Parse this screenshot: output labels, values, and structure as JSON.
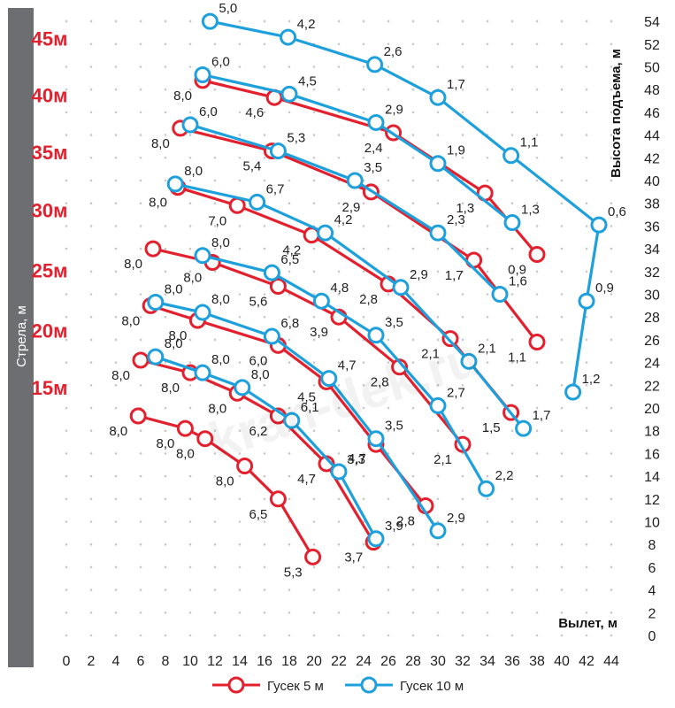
{
  "chart_data": {
    "type": "scatter",
    "title": "",
    "xlabel": "Вылет, м",
    "ylabel": "Высота подъема, м",
    "left_axis_title": "Стрела, м",
    "xlim": [
      0,
      44
    ],
    "ylim": [
      0,
      54
    ],
    "x_ticks": [
      0,
      2,
      4,
      6,
      8,
      10,
      12,
      14,
      16,
      18,
      20,
      22,
      24,
      26,
      28,
      30,
      32,
      34,
      36,
      38,
      40,
      42,
      44
    ],
    "y_ticks": [
      0,
      2,
      4,
      6,
      8,
      10,
      12,
      14,
      16,
      18,
      20,
      22,
      24,
      26,
      28,
      30,
      32,
      34,
      36,
      38,
      40,
      42,
      44,
      46,
      48,
      50,
      52,
      54
    ],
    "boom_lengths": [
      {
        "label": "45м",
        "height": 52.5
      },
      {
        "label": "40м",
        "height": 47.5
      },
      {
        "label": "35м",
        "height": 42.5
      },
      {
        "label": "30м",
        "height": 37.4
      },
      {
        "label": "25м",
        "height": 32.1
      },
      {
        "label": "20м",
        "height": 26.8
      },
      {
        "label": "15м",
        "height": 21.8
      }
    ],
    "legend": [
      {
        "name": "Гусек 5 м",
        "color": "#e3202e"
      },
      {
        "name": "Гусек 10 м",
        "color": "#1ea0dc"
      }
    ],
    "series": [
      {
        "name": "Гусек 5 м",
        "color": "#e3202e",
        "boom": "15м",
        "points": [
          {
            "x": 5.8,
            "y": 19.3,
            "label": "8,0"
          },
          {
            "x": 9.6,
            "y": 18.2,
            "label": "8,0"
          },
          {
            "x": 11.2,
            "y": 17.3,
            "label": "8,0"
          },
          {
            "x": 14.4,
            "y": 14.9,
            "label": "8,0"
          },
          {
            "x": 17.1,
            "y": 12.0,
            "label": "6,5"
          },
          {
            "x": 19.9,
            "y": 6.9,
            "label": "5,3"
          }
        ]
      },
      {
        "name": "Гусек 10 м",
        "color": "#1ea0dc",
        "boom": "15м",
        "points": []
      },
      {
        "name": "Гусек 5 м",
        "color": "#e3202e",
        "boom": "20м",
        "points": [
          {
            "x": 6.0,
            "y": 24.2,
            "label": "8,0"
          },
          {
            "x": 10.0,
            "y": 23.1,
            "label": "8,0"
          },
          {
            "x": 13.8,
            "y": 21.3,
            "label": "8,0"
          },
          {
            "x": 17.1,
            "y": 19.3,
            "label": "6,2"
          },
          {
            "x": 21.0,
            "y": 15.1,
            "label": "4,7"
          },
          {
            "x": 24.8,
            "y": 8.2,
            "label": "3,7"
          }
        ]
      },
      {
        "name": "Гусек 10 м",
        "color": "#1ea0dc",
        "boom": "20м",
        "points": [
          {
            "x": 7.2,
            "y": 24.5,
            "label": "8,0"
          },
          {
            "x": 11.0,
            "y": 23.1,
            "label": "8,0"
          },
          {
            "x": 14.2,
            "y": 21.8,
            "label": "8,0"
          },
          {
            "x": 18.2,
            "y": 18.9,
            "label": "6,1"
          },
          {
            "x": 22.0,
            "y": 14.4,
            "label": "4,7"
          },
          {
            "x": 25.0,
            "y": 8.5,
            "label": "3,9"
          }
        ]
      },
      {
        "name": "Гусек 5 м",
        "color": "#e3202e",
        "boom": "25м",
        "points": [
          {
            "x": 6.8,
            "y": 29.0,
            "label": "8,0"
          },
          {
            "x": 10.6,
            "y": 27.7,
            "label": "8,0"
          },
          {
            "x": 17.1,
            "y": 25.5,
            "label": "6,0"
          },
          {
            "x": 21.0,
            "y": 22.3,
            "label": "4,5"
          },
          {
            "x": 25.0,
            "y": 16.8,
            "label": "3,3"
          },
          {
            "x": 29.0,
            "y": 11.4,
            "label": "2,8"
          }
        ]
      },
      {
        "name": "Гусек 10 м",
        "color": "#1ea0dc",
        "boom": "25м",
        "points": [
          {
            "x": 7.2,
            "y": 29.3,
            "label": "8,0"
          },
          {
            "x": 11.0,
            "y": 28.4,
            "label": "8,0"
          },
          {
            "x": 16.6,
            "y": 26.3,
            "label": "6,8"
          },
          {
            "x": 21.2,
            "y": 22.6,
            "label": "4,7"
          },
          {
            "x": 25.0,
            "y": 17.3,
            "label": "3,5"
          },
          {
            "x": 30.0,
            "y": 9.2,
            "label": "2,9"
          }
        ]
      },
      {
        "name": "Гусек 5 м",
        "color": "#e3202e",
        "boom": "30м",
        "points": [
          {
            "x": 7.0,
            "y": 34.0,
            "label": "8,0"
          },
          {
            "x": 11.8,
            "y": 32.8,
            "label": "8,0"
          },
          {
            "x": 17.1,
            "y": 30.7,
            "label": "5,6"
          },
          {
            "x": 22.0,
            "y": 28.0,
            "label": "3,9"
          },
          {
            "x": 26.9,
            "y": 23.6,
            "label": "2,8"
          },
          {
            "x": 32.0,
            "y": 16.8,
            "label": "2,1"
          }
        ]
      },
      {
        "name": "Гусек 10 м",
        "color": "#1ea0dc",
        "boom": "30м",
        "points": [
          {
            "x": 11.0,
            "y": 33.4,
            "label": "8,0"
          },
          {
            "x": 16.6,
            "y": 31.9,
            "label": "6,5"
          },
          {
            "x": 20.6,
            "y": 29.4,
            "label": "4,8"
          },
          {
            "x": 25.0,
            "y": 26.4,
            "label": "3,5"
          },
          {
            "x": 30.0,
            "y": 20.2,
            "label": "2,7"
          },
          {
            "x": 33.9,
            "y": 12.9,
            "label": "2,2"
          }
        ]
      },
      {
        "name": "Гусек 5 м",
        "color": "#e3202e",
        "boom": "35м",
        "points": [
          {
            "x": 9.0,
            "y": 39.4,
            "label": "8,0"
          },
          {
            "x": 13.8,
            "y": 37.8,
            "label": "7,0"
          },
          {
            "x": 19.8,
            "y": 35.2,
            "label": "4,2"
          },
          {
            "x": 26.0,
            "y": 30.9,
            "label": "2,8"
          },
          {
            "x": 31.0,
            "y": 26.1,
            "label": "2,1"
          },
          {
            "x": 35.9,
            "y": 19.6,
            "label": "1,5"
          }
        ]
      },
      {
        "name": "Гусек 10 м",
        "color": "#1ea0dc",
        "boom": "35м",
        "points": [
          {
            "x": 8.8,
            "y": 39.7,
            "label": "8,0"
          },
          {
            "x": 15.4,
            "y": 38.1,
            "label": "6,7"
          },
          {
            "x": 20.9,
            "y": 35.4,
            "label": "4,2"
          },
          {
            "x": 27.0,
            "y": 30.6,
            "label": "2,9"
          },
          {
            "x": 32.5,
            "y": 24.1,
            "label": "2,1"
          },
          {
            "x": 36.9,
            "y": 18.2,
            "label": "1,7"
          }
        ]
      },
      {
        "name": "Гусек 5 м",
        "color": "#e3202e",
        "boom": "40м",
        "points": [
          {
            "x": 9.2,
            "y": 44.6,
            "label": "8,0"
          },
          {
            "x": 16.6,
            "y": 42.6,
            "label": "5,4"
          },
          {
            "x": 24.6,
            "y": 39.0,
            "label": "2,9"
          },
          {
            "x": 32.9,
            "y": 33.0,
            "label": "1,7"
          },
          {
            "x": 38.0,
            "y": 25.8,
            "label": "1,1"
          }
        ]
      },
      {
        "name": "Гусек 10 м",
        "color": "#1ea0dc",
        "boom": "40м",
        "points": [
          {
            "x": 10.0,
            "y": 44.9,
            "label": "6,0"
          },
          {
            "x": 17.1,
            "y": 42.6,
            "label": "5,3"
          },
          {
            "x": 23.3,
            "y": 40.0,
            "label": "3,5"
          },
          {
            "x": 30.0,
            "y": 35.4,
            "label": "2,3"
          },
          {
            "x": 35.0,
            "y": 30.0,
            "label": "1,6"
          }
        ]
      },
      {
        "name": "Гусек 5 м",
        "color": "#e3202e",
        "boom": "45м",
        "points": [
          {
            "x": 11.0,
            "y": 48.8,
            "label": "8,0"
          },
          {
            "x": 16.8,
            "y": 47.3,
            "label": "4,6"
          },
          {
            "x": 26.4,
            "y": 44.2,
            "label": "2,4"
          },
          {
            "x": 33.8,
            "y": 38.9,
            "label": "1,3"
          },
          {
            "x": 38.0,
            "y": 33.5,
            "label": "0,9"
          }
        ]
      },
      {
        "name": "Гусек 10 м",
        "color": "#1ea0dc",
        "boom": "45м",
        "points": [
          {
            "x": 11.0,
            "y": 49.3,
            "label": "6,0"
          },
          {
            "x": 18.0,
            "y": 47.6,
            "label": "4,5"
          },
          {
            "x": 25.0,
            "y": 45.1,
            "label": "2,9"
          },
          {
            "x": 30.0,
            "y": 41.5,
            "label": "1,9"
          },
          {
            "x": 36.0,
            "y": 36.3,
            "label": "1,3"
          }
        ]
      },
      {
        "name": "Гусек 10 м",
        "color": "#1ea0dc",
        "boom": "45м (верх.)",
        "points": [
          {
            "x": 11.6,
            "y": 54.0,
            "label": "5,0"
          },
          {
            "x": 17.9,
            "y": 52.6,
            "label": "4,2"
          },
          {
            "x": 24.9,
            "y": 50.2,
            "label": "2,6"
          },
          {
            "x": 30.0,
            "y": 47.3,
            "label": "1,7"
          },
          {
            "x": 35.9,
            "y": 42.2,
            "label": "1,1"
          },
          {
            "x": 43.0,
            "y": 36.1,
            "label": "0,6"
          },
          {
            "x": 42.0,
            "y": 29.4,
            "label": "0,9"
          },
          {
            "x": 40.9,
            "y": 21.4,
            "label": "1,2"
          }
        ]
      }
    ],
    "watermark": "kran-dek.ru"
  }
}
